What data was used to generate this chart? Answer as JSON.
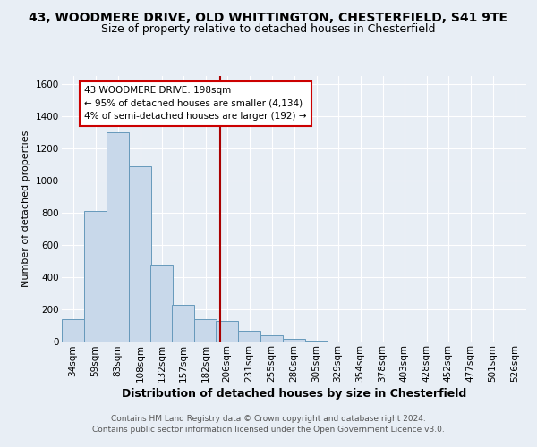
{
  "title1": "43, WOODMERE DRIVE, OLD WHITTINGTON, CHESTERFIELD, S41 9TE",
  "title2": "Size of property relative to detached houses in Chesterfield",
  "xlabel": "Distribution of detached houses by size in Chesterfield",
  "ylabel": "Number of detached properties",
  "bar_labels": [
    "34sqm",
    "59sqm",
    "83sqm",
    "108sqm",
    "132sqm",
    "157sqm",
    "182sqm",
    "206sqm",
    "231sqm",
    "255sqm",
    "280sqm",
    "305sqm",
    "329sqm",
    "354sqm",
    "378sqm",
    "403sqm",
    "428sqm",
    "452sqm",
    "477sqm",
    "501sqm",
    "526sqm"
  ],
  "bar_values": [
    140,
    810,
    1300,
    1090,
    480,
    230,
    140,
    130,
    70,
    40,
    20,
    10,
    5,
    5,
    5,
    5,
    5,
    5,
    5,
    5,
    5
  ],
  "bar_color": "#c8d8ea",
  "bar_edge_color": "#6699bb",
  "ylim": [
    0,
    1650
  ],
  "yticks": [
    0,
    200,
    400,
    600,
    800,
    1000,
    1200,
    1400,
    1600
  ],
  "property_value": 198,
  "bin_width": 25,
  "bin_starts": [
    21.5,
    46.5,
    71.5,
    96.5,
    120.5,
    144.5,
    169.5,
    193.5,
    218.5,
    243.5,
    268.5,
    293.5,
    317.5,
    342.5,
    367.5,
    391.5,
    416.5,
    440.5,
    465.5,
    490.5,
    515.5
  ],
  "vline_color": "#aa0000",
  "annotation_text": "43 WOODMERE DRIVE: 198sqm\n← 95% of detached houses are smaller (4,134)\n4% of semi-detached houses are larger (192) →",
  "bg_color": "#e8eef5",
  "plot_bg_color": "#e8eef5",
  "footer1": "Contains HM Land Registry data © Crown copyright and database right 2024.",
  "footer2": "Contains public sector information licensed under the Open Government Licence v3.0.",
  "title1_fontsize": 10,
  "title2_fontsize": 9,
  "xlabel_fontsize": 9,
  "ylabel_fontsize": 8,
  "tick_fontsize": 7.5,
  "footer_fontsize": 6.5
}
